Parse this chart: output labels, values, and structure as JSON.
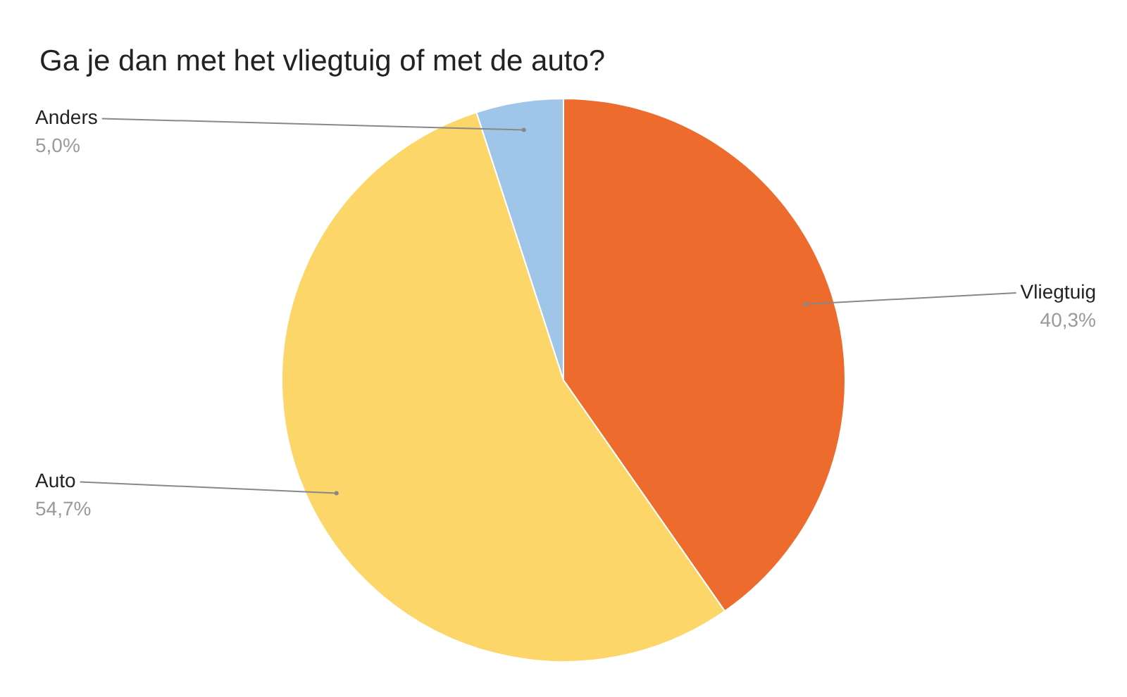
{
  "chart_data": {
    "type": "pie",
    "title": "Ga je dan met het vliegtuig of met de auto?",
    "categories": [
      "Vliegtuig",
      "Auto",
      "Anders"
    ],
    "values": [
      40.3,
      54.7,
      5.0
    ],
    "colors": [
      "#ec6b2d",
      "#fcd668",
      "#9fc5e8"
    ],
    "value_labels": [
      "40,3%",
      "54,7%",
      "5,0%"
    ]
  }
}
